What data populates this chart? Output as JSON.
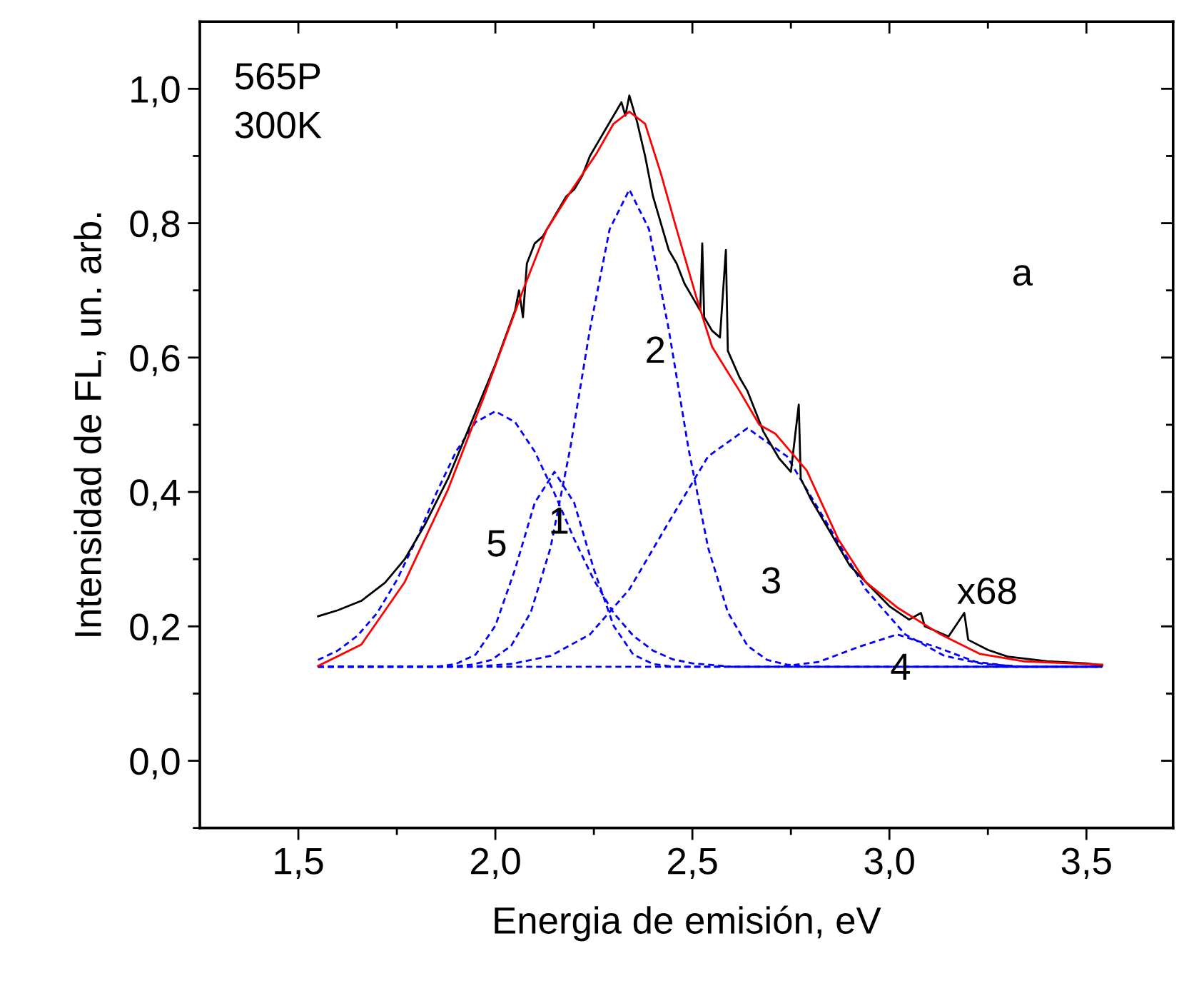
{
  "chart_data": {
    "type": "line",
    "xlabel": "Energia de emisión, eV",
    "ylabel": "Intensidad de FL, un. arb.",
    "xlim": [
      1.25,
      3.72
    ],
    "ylim": [
      -0.1,
      1.1
    ],
    "xticks": [
      {
        "value": 1.5,
        "label": "1,5"
      },
      {
        "value": 1.75,
        "label": null
      },
      {
        "value": 2.0,
        "label": "2,0"
      },
      {
        "value": 2.25,
        "label": null
      },
      {
        "value": 2.5,
        "label": "2,5"
      },
      {
        "value": 2.75,
        "label": null
      },
      {
        "value": 3.0,
        "label": "3,0"
      },
      {
        "value": 3.25,
        "label": null
      },
      {
        "value": 3.5,
        "label": "3,5"
      }
    ],
    "yticks": [
      {
        "value": -0.1,
        "label": null
      },
      {
        "value": 0.0,
        "label": "0,0"
      },
      {
        "value": 0.1,
        "label": null
      },
      {
        "value": 0.2,
        "label": "0,2"
      },
      {
        "value": 0.3,
        "label": null
      },
      {
        "value": 0.4,
        "label": "0,4"
      },
      {
        "value": 0.5,
        "label": null
      },
      {
        "value": 0.6,
        "label": "0,6"
      },
      {
        "value": 0.7,
        "label": null
      },
      {
        "value": 0.8,
        "label": "0,8"
      },
      {
        "value": 0.9,
        "label": null
      },
      {
        "value": 1.0,
        "label": "1,0"
      }
    ],
    "grid": false,
    "series": [
      {
        "color": "#0000ff",
        "line_style": "dashed",
        "x": [
          1.55,
          1.6,
          1.65,
          1.7,
          1.75,
          1.8,
          1.85,
          1.9,
          1.95,
          2.0,
          2.05,
          2.1,
          2.15,
          2.2,
          2.25,
          2.3,
          2.35,
          2.4,
          2.45,
          2.5,
          2.6,
          3.54
        ],
        "values": [
          0.15,
          0.164,
          0.186,
          0.22,
          0.269,
          0.33,
          0.398,
          0.46,
          0.504,
          0.52,
          0.504,
          0.46,
          0.398,
          0.33,
          0.269,
          0.22,
          0.186,
          0.164,
          0.151,
          0.145,
          0.14,
          0.14
        ]
      },
      {
        "color": "#0000ff",
        "line_style": "dashed",
        "x": [
          1.55,
          1.85,
          1.9,
          1.95,
          2.0,
          2.05,
          2.1,
          2.15,
          2.2,
          2.25,
          2.3,
          2.35,
          2.4,
          2.45,
          3.54
        ],
        "values": [
          0.14,
          0.14,
          0.144,
          0.158,
          0.201,
          0.285,
          0.384,
          0.43,
          0.384,
          0.285,
          0.201,
          0.158,
          0.144,
          0.14,
          0.14
        ]
      },
      {
        "color": "#0000ff",
        "line_style": "dashed",
        "x": [
          1.55,
          1.89,
          1.94,
          1.99,
          2.04,
          2.09,
          2.14,
          2.19,
          2.24,
          2.29,
          2.34,
          2.39,
          2.44,
          2.49,
          2.54,
          2.59,
          2.64,
          2.69,
          2.74,
          2.79,
          3.54
        ],
        "values": [
          0.14,
          0.14,
          0.143,
          0.15,
          0.171,
          0.221,
          0.317,
          0.465,
          0.642,
          0.791,
          0.85,
          0.791,
          0.642,
          0.465,
          0.317,
          0.221,
          0.171,
          0.15,
          0.143,
          0.14,
          0.14
        ]
      },
      {
        "color": "#0000ff",
        "line_style": "dashed",
        "x": [
          1.55,
          1.94,
          2.04,
          2.14,
          2.24,
          2.34,
          2.44,
          2.54,
          2.64,
          2.74,
          2.84,
          2.94,
          3.04,
          3.14,
          3.24,
          3.34,
          3.54
        ],
        "values": [
          0.14,
          0.14,
          0.144,
          0.156,
          0.188,
          0.255,
          0.355,
          0.453,
          0.495,
          0.453,
          0.355,
          0.255,
          0.188,
          0.156,
          0.144,
          0.14,
          0.14
        ]
      },
      {
        "color": "#0000ff",
        "line_style": "dashed",
        "x": [
          1.55,
          2.72,
          2.82,
          2.92,
          3.02,
          3.12,
          3.22,
          3.32,
          3.54
        ],
        "values": [
          0.14,
          0.14,
          0.147,
          0.169,
          0.188,
          0.169,
          0.147,
          0.14,
          0.14
        ]
      },
      {
        "color": "#000000",
        "line_style": "solid",
        "x": [
          1.55,
          1.6,
          1.66,
          1.72,
          1.77,
          1.82,
          1.88,
          1.94,
          2.0,
          2.05,
          2.06,
          2.07,
          2.08,
          2.1,
          2.12,
          2.14,
          2.16,
          2.18,
          2.2,
          2.22,
          2.24,
          2.26,
          2.28,
          2.3,
          2.32,
          2.33,
          2.34,
          2.35,
          2.36,
          2.38,
          2.4,
          2.42,
          2.44,
          2.46,
          2.48,
          2.5,
          2.52,
          2.525,
          2.53,
          2.55,
          2.57,
          2.585,
          2.59,
          2.62,
          2.64,
          2.66,
          2.68,
          2.7,
          2.72,
          2.75,
          2.77,
          2.775,
          2.8,
          2.85,
          2.9,
          2.95,
          3.0,
          3.05,
          3.08,
          3.09,
          3.15,
          3.19,
          3.2,
          3.25,
          3.3,
          3.4,
          3.5,
          3.54
        ],
        "values": [
          0.215,
          0.224,
          0.238,
          0.265,
          0.3,
          0.35,
          0.42,
          0.505,
          0.59,
          0.67,
          0.7,
          0.66,
          0.74,
          0.77,
          0.78,
          0.8,
          0.82,
          0.84,
          0.85,
          0.87,
          0.9,
          0.92,
          0.94,
          0.96,
          0.98,
          0.96,
          0.99,
          0.97,
          0.95,
          0.9,
          0.84,
          0.8,
          0.76,
          0.74,
          0.71,
          0.69,
          0.67,
          0.77,
          0.66,
          0.64,
          0.63,
          0.76,
          0.61,
          0.57,
          0.55,
          0.52,
          0.49,
          0.47,
          0.45,
          0.43,
          0.53,
          0.42,
          0.39,
          0.34,
          0.29,
          0.26,
          0.23,
          0.21,
          0.22,
          0.2,
          0.185,
          0.22,
          0.18,
          0.165,
          0.155,
          0.148,
          0.145,
          0.142
        ]
      },
      {
        "color": "#ff0000",
        "line_style": "solid",
        "x": [
          1.55,
          1.66,
          1.77,
          1.88,
          1.94,
          1.97,
          2.07,
          2.13,
          2.19,
          2.256,
          2.3,
          2.34,
          2.38,
          2.42,
          2.46,
          2.51,
          2.55,
          2.62,
          2.67,
          2.71,
          2.79,
          2.87,
          2.94,
          3.02,
          3.13,
          3.23,
          3.34,
          3.54
        ],
        "values": [
          0.141,
          0.173,
          0.266,
          0.404,
          0.495,
          0.54,
          0.7,
          0.79,
          0.846,
          0.903,
          0.948,
          0.966,
          0.948,
          0.874,
          0.791,
          0.69,
          0.616,
          0.55,
          0.5,
          0.487,
          0.432,
          0.33,
          0.266,
          0.228,
          0.188,
          0.159,
          0.148,
          0.143
        ]
      }
    ],
    "annotations": [
      "565P\n300K",
      "a",
      "5",
      "1",
      "2",
      "3",
      "4",
      "x68"
    ]
  }
}
